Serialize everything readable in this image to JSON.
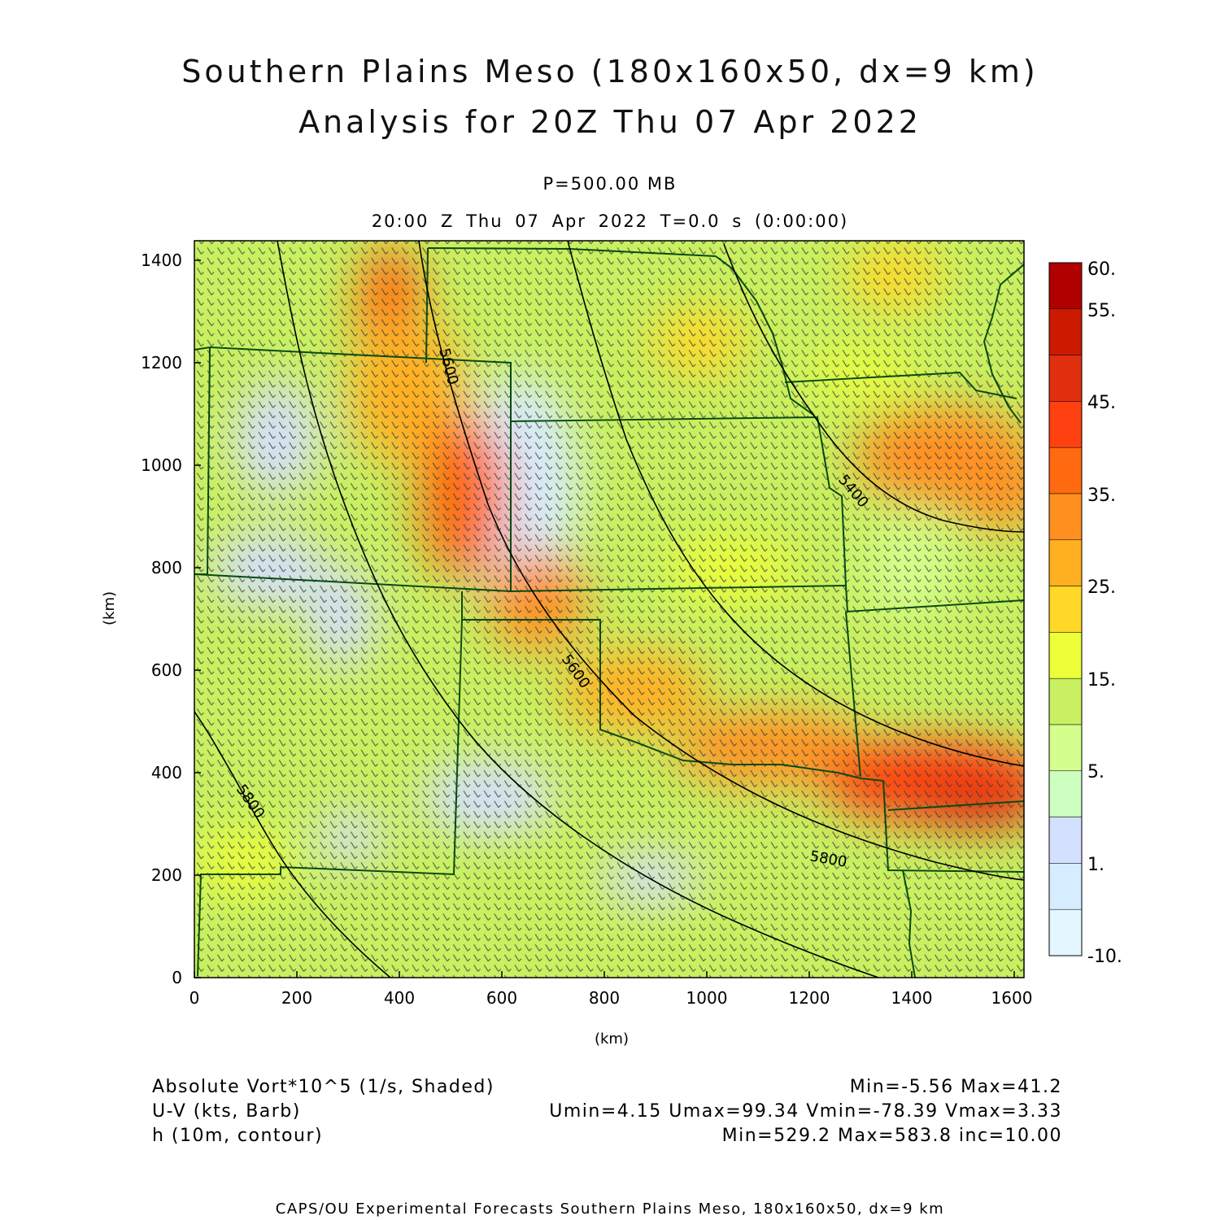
{
  "header": {
    "title_line1": "Southern Plains Meso (180x160x50, dx=9 km)",
    "title_line2": "Analysis for 20Z Thu 07 Apr 2022",
    "pressure_level": "P=500.00 MB",
    "valid_time": "20:00 Z Thu 07 Apr 2022    T=0.0 s (0:00:00)"
  },
  "axes": {
    "unit_label": "(km)",
    "x_range": [
      0,
      1620
    ],
    "y_range": [
      0,
      1440
    ],
    "x_ticks": [
      "0",
      "200",
      "400",
      "600",
      "800",
      "1000",
      "1200",
      "1400",
      "1600"
    ],
    "y_ticks": [
      "0",
      "200",
      "400",
      "600",
      "800",
      "1000",
      "1200",
      "1400"
    ]
  },
  "colorbar": {
    "labels": [
      "60.",
      "55.",
      "45.",
      "35.",
      "25.",
      "15.",
      "5.",
      "1.",
      "-10."
    ],
    "colors_top_to_bottom": [
      "#b00000",
      "#cc1a00",
      "#e03010",
      "#ff4010",
      "#ff6a10",
      "#ff9020",
      "#ffb020",
      "#ffd828",
      "#ecff38",
      "#c8f060",
      "#d4ff8c",
      "#ccffc0",
      "#d4e0ff",
      "#d6ecff",
      "#e4f6ff"
    ]
  },
  "contours": {
    "labels": [
      "5400",
      "5600",
      "5600",
      "5800",
      "5800"
    ]
  },
  "legend": {
    "line1_left": "Absolute Vort*10^5 (1/s, Shaded)",
    "line1_right": "Min=-5.56 Max=41.2",
    "line2_left": "U-V (kts, Barb)",
    "line2_right": "Umin=4.15 Umax=99.34 Vmin=-78.39 Vmax=3.33",
    "line3_left": "h (10m, contour)",
    "line3_right": "Min=529.2 Max=583.8 inc=10.00"
  },
  "credit": "CAPS/OU Experimental Forecasts  Southern Plains Meso, 180x160x50, dx=9 km"
}
